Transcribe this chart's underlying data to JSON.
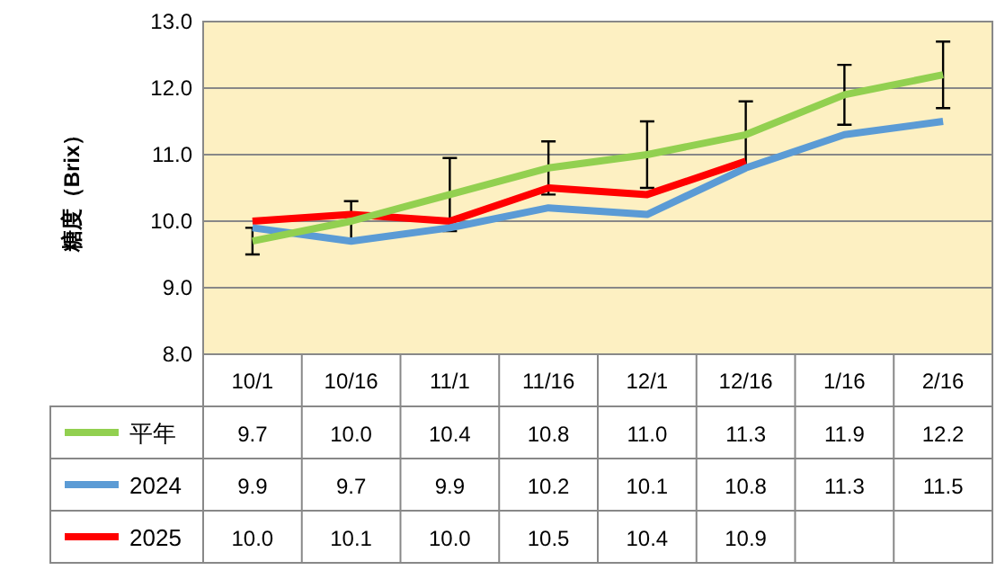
{
  "chart_data": {
    "type": "line",
    "ylabel": "糖度（Brix）",
    "categories": [
      "10/1",
      "10/16",
      "11/1",
      "11/16",
      "12/1",
      "12/16",
      "1/16",
      "2/16"
    ],
    "series": [
      {
        "name": "平年",
        "color": "#92d050",
        "values": [
          9.7,
          10.0,
          10.4,
          10.8,
          11.0,
          11.3,
          11.9,
          12.2
        ],
        "value_labels": [
          "9.7",
          "10.0",
          "10.4",
          "10.8",
          "11.0",
          "11.3",
          "11.9",
          "12.2"
        ],
        "errors": [
          0.2,
          0.3,
          0.55,
          0.4,
          0.5,
          0.5,
          0.45,
          0.5
        ]
      },
      {
        "name": "2024",
        "color": "#5b9bd5",
        "values": [
          9.9,
          9.7,
          9.9,
          10.2,
          10.1,
          10.8,
          11.3,
          11.5
        ],
        "value_labels": [
          "9.9",
          "9.7",
          "9.9",
          "10.2",
          "10.1",
          "10.8",
          "11.3",
          "11.5"
        ]
      },
      {
        "name": "2025",
        "color": "#ff0000",
        "values": [
          10.0,
          10.1,
          10.0,
          10.5,
          10.4,
          10.9,
          null,
          null
        ],
        "value_labels": [
          "10.0",
          "10.1",
          "10.0",
          "10.5",
          "10.4",
          "10.9",
          null,
          null
        ]
      }
    ],
    "ylim": [
      8,
      13
    ],
    "yticks": [
      {
        "value": 8,
        "label": "8.0"
      },
      {
        "value": 9,
        "label": "9.0"
      },
      {
        "value": 10,
        "label": "10.0"
      },
      {
        "value": 11,
        "label": "11.0"
      },
      {
        "value": 12,
        "label": "12.0"
      },
      {
        "value": 13,
        "label": "13.0"
      }
    ],
    "grid": "y",
    "legend": "bottom",
    "line_style": "solid",
    "marker": "none"
  }
}
